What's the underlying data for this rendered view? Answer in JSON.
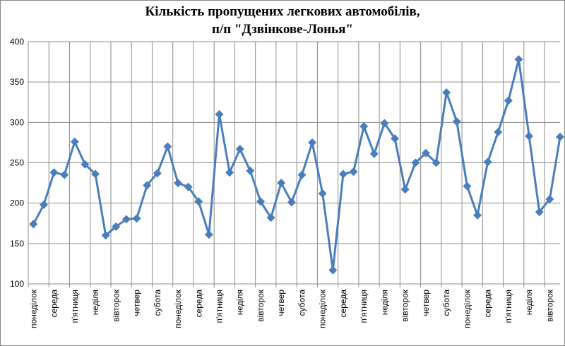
{
  "chart_data": {
    "type": "line",
    "title": [
      "Кількість пропущених легкових автомобілів,",
      "п/п \"Дзвінкове-Лонья\""
    ],
    "categories": [
      "понеділок",
      null,
      "середа",
      null,
      "п'ятниця",
      null,
      "неділя",
      null,
      "вівторок",
      null,
      "четвер",
      null,
      "субота",
      null,
      "понеділок",
      null,
      "середа",
      null,
      "п'ятниця",
      null,
      "неділя",
      null,
      "вівторок",
      null,
      "четвер",
      null,
      "субота",
      null,
      "понеділок",
      null,
      "середа",
      null,
      "п'ятниця",
      null,
      "неділя",
      null,
      "вівторок",
      null,
      "четвер",
      null,
      "субота",
      null,
      "понеділок",
      null,
      "середа",
      null,
      "п'ятниця",
      null,
      "неділя",
      null,
      "вівторок",
      null
    ],
    "series": [
      {
        "color": "#4a7ebb",
        "values": [
          174,
          198,
          238,
          235,
          276,
          248,
          236,
          160,
          171,
          180,
          181,
          222,
          237,
          270,
          225,
          220,
          202,
          161,
          310,
          238,
          267,
          240,
          202,
          182,
          225,
          201,
          235,
          275,
          212,
          117,
          236,
          239,
          295,
          261,
          299,
          280,
          217,
          250,
          262,
          250,
          337,
          301,
          221,
          185,
          251,
          288,
          327,
          378,
          283,
          189,
          205,
          282
        ]
      }
    ],
    "ylim": [
      100,
      400
    ],
    "yticks": [
      100,
      150,
      200,
      250,
      300,
      350,
      400
    ],
    "grid": true
  }
}
